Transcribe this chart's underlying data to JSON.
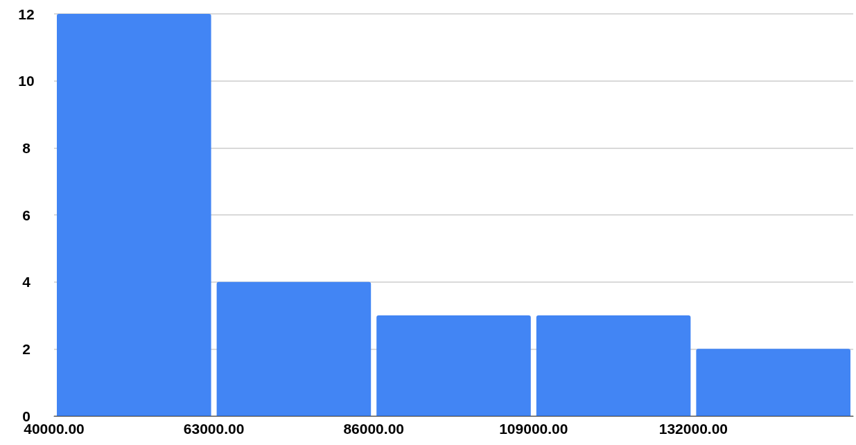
{
  "chart_data": {
    "type": "histogram",
    "bins": [
      40000,
      63000,
      86000,
      109000,
      132000,
      155000
    ],
    "values": [
      12,
      4,
      3,
      3,
      2
    ],
    "color": "#4285f4",
    "xlim": [
      40000,
      155000
    ],
    "xticks": [
      {
        "value": 40000,
        "label": "40000.00"
      },
      {
        "value": 63000,
        "label": "63000.00"
      },
      {
        "value": 86000,
        "label": "86000.00"
      },
      {
        "value": 109000,
        "label": "109000.00"
      },
      {
        "value": 132000,
        "label": "132000.00"
      }
    ],
    "ylim": [
      0,
      12
    ],
    "yticks": [
      0,
      2,
      4,
      6,
      8,
      10,
      12
    ],
    "grid": "y"
  }
}
